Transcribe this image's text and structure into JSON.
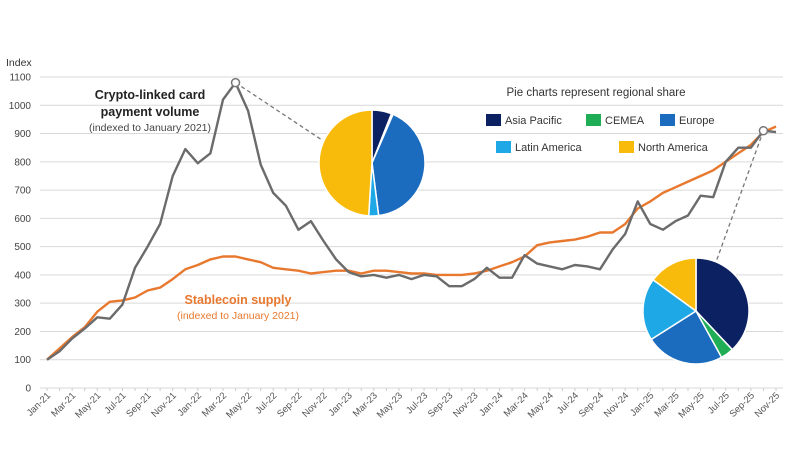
{
  "chart_data": {
    "type": "line",
    "ylabel": "Index",
    "ylim": [
      0,
      1100
    ],
    "yticks": [
      0,
      100,
      200,
      300,
      400,
      500,
      600,
      700,
      800,
      900,
      1000,
      1100
    ],
    "grid": true,
    "x": [
      "Jan-21",
      "Feb-21",
      "Mar-21",
      "Apr-21",
      "May-21",
      "Jun-21",
      "Jul-21",
      "Aug-21",
      "Sep-21",
      "Oct-21",
      "Nov-21",
      "Dec-21",
      "Jan-22",
      "Feb-22",
      "Mar-22",
      "Apr-22",
      "May-22",
      "Jun-22",
      "Jul-22",
      "Aug-22",
      "Sep-22",
      "Oct-22",
      "Nov-22",
      "Dec-22",
      "Jan-23",
      "Feb-23",
      "Mar-23",
      "Apr-23",
      "May-23",
      "Jun-23",
      "Jul-23",
      "Aug-23",
      "Sep-23",
      "Oct-23",
      "Nov-23",
      "Dec-23",
      "Jan-24",
      "Feb-24",
      "Mar-24",
      "Apr-24",
      "May-24",
      "Jun-24",
      "Jul-24",
      "Aug-24",
      "Sep-24",
      "Oct-24",
      "Nov-24",
      "Dec-24",
      "Jan-25",
      "Feb-25",
      "Mar-25",
      "Apr-25",
      "May-25",
      "Jun-25",
      "Jul-25",
      "Aug-25",
      "Sep-25",
      "Oct-25",
      "Nov-25"
    ],
    "xtick_labels": [
      "Jan-21",
      "Mar-21",
      "May-21",
      "Jul-21",
      "Sep-21",
      "Nov-21",
      "Jan-22",
      "Mar-22",
      "May-22",
      "Jul-22",
      "Sep-22",
      "Nov-22",
      "Jan-23",
      "Mar-23",
      "May-23",
      "Jul-23",
      "Sep-23",
      "Nov-23",
      "Jan-24",
      "Mar-24",
      "May-24",
      "Jul-24",
      "Sep-24",
      "Nov-24",
      "Jan-25",
      "Mar-25",
      "May-25",
      "Jul-25",
      "Sep-25",
      "Nov-25"
    ],
    "series": [
      {
        "name": "Crypto-linked card payment volume",
        "note": "(indexed to January 2021)",
        "color": "#6b6b6b",
        "values": [
          100,
          130,
          175,
          210,
          250,
          245,
          295,
          425,
          500,
          580,
          750,
          845,
          795,
          830,
          1020,
          1080,
          980,
          790,
          690,
          645,
          560,
          590,
          520,
          455,
          410,
          395,
          400,
          390,
          400,
          385,
          400,
          395,
          360,
          360,
          385,
          425,
          390,
          390,
          470,
          440,
          430,
          420,
          435,
          430,
          420,
          490,
          545,
          660,
          580,
          560,
          590,
          610,
          680,
          675,
          800,
          850,
          850,
          910,
          905
        ]
      },
      {
        "name": "Stablecoin supply",
        "note": "(indexed to January 2021)",
        "color": "#e8782e",
        "values": [
          100,
          140,
          180,
          215,
          270,
          305,
          310,
          320,
          345,
          355,
          385,
          420,
          435,
          455,
          465,
          465,
          455,
          445,
          425,
          420,
          415,
          405,
          410,
          415,
          415,
          405,
          415,
          415,
          410,
          405,
          405,
          400,
          400,
          400,
          405,
          415,
          430,
          445,
          465,
          505,
          515,
          520,
          525,
          535,
          550,
          550,
          580,
          635,
          660,
          690,
          710,
          730,
          750,
          770,
          800,
          830,
          860,
          905,
          925
        ]
      }
    ],
    "pie_legend_title": "Pie charts represent regional share",
    "regions": [
      {
        "name": "Asia Pacific",
        "color": "#0b2161"
      },
      {
        "name": "CEMEA",
        "color": "#1fae55"
      },
      {
        "name": "Europe",
        "color": "#1b6cbf"
      },
      {
        "name": "Latin America",
        "color": "#1fa8e6"
      },
      {
        "name": "North America",
        "color": "#f9bb0b"
      }
    ],
    "pies": [
      {
        "at": "Apr-22",
        "shares": [
          6,
          0.5,
          41.5,
          3,
          49
        ]
      },
      {
        "at": "Oct-25",
        "shares": [
          38,
          4,
          24,
          19,
          15
        ]
      }
    ]
  }
}
